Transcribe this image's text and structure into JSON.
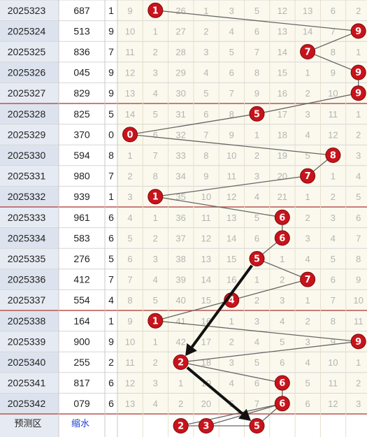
{
  "chart_data": {
    "type": "table",
    "columns": [
      "0",
      "1",
      "2",
      "3",
      "4",
      "5",
      "6",
      "7",
      "8",
      "9"
    ],
    "rows": [
      {
        "issue": "2025323",
        "number": "687",
        "tail": "1",
        "misses": [
          "9",
          "1",
          "26",
          "1",
          "3",
          "5",
          "12",
          "13",
          "6",
          "2"
        ]
      },
      {
        "issue": "2025324",
        "number": "513",
        "tail": "9",
        "misses": [
          "10",
          "1",
          "27",
          "2",
          "4",
          "6",
          "13",
          "14",
          "7",
          "9"
        ]
      },
      {
        "issue": "2025325",
        "number": "836",
        "tail": "7",
        "misses": [
          "11",
          "2",
          "28",
          "3",
          "5",
          "7",
          "14",
          "7",
          "8",
          "1"
        ]
      },
      {
        "issue": "2025326",
        "number": "045",
        "tail": "9",
        "misses": [
          "12",
          "3",
          "29",
          "4",
          "6",
          "8",
          "15",
          "1",
          "9",
          "9"
        ]
      },
      {
        "issue": "2025327",
        "number": "829",
        "tail": "9",
        "misses": [
          "13",
          "4",
          "30",
          "5",
          "7",
          "9",
          "16",
          "2",
          "10",
          "9"
        ]
      },
      {
        "issue": "2025328",
        "number": "825",
        "tail": "5",
        "misses": [
          "14",
          "5",
          "31",
          "6",
          "8",
          "5",
          "17",
          "3",
          "11",
          "1"
        ]
      },
      {
        "issue": "2025329",
        "number": "370",
        "tail": "0",
        "misses": [
          "0",
          "6",
          "32",
          "7",
          "9",
          "1",
          "18",
          "4",
          "12",
          "2"
        ]
      },
      {
        "issue": "2025330",
        "number": "594",
        "tail": "8",
        "misses": [
          "1",
          "7",
          "33",
          "8",
          "10",
          "2",
          "19",
          "5",
          "8",
          "3"
        ]
      },
      {
        "issue": "2025331",
        "number": "980",
        "tail": "7",
        "misses": [
          "2",
          "8",
          "34",
          "9",
          "11",
          "3",
          "20",
          "7",
          "1",
          "4"
        ]
      },
      {
        "issue": "2025332",
        "number": "939",
        "tail": "1",
        "misses": [
          "3",
          "1",
          "35",
          "10",
          "12",
          "4",
          "21",
          "1",
          "2",
          "5"
        ]
      },
      {
        "issue": "2025333",
        "number": "961",
        "tail": "6",
        "misses": [
          "4",
          "1",
          "36",
          "11",
          "13",
          "5",
          "6",
          "2",
          "3",
          "6"
        ]
      },
      {
        "issue": "2025334",
        "number": "583",
        "tail": "6",
        "misses": [
          "5",
          "2",
          "37",
          "12",
          "14",
          "6",
          "6",
          "3",
          "4",
          "7"
        ]
      },
      {
        "issue": "2025335",
        "number": "276",
        "tail": "5",
        "misses": [
          "6",
          "3",
          "38",
          "13",
          "15",
          "5",
          "1",
          "4",
          "5",
          "8"
        ]
      },
      {
        "issue": "2025336",
        "number": "412",
        "tail": "7",
        "misses": [
          "7",
          "4",
          "39",
          "14",
          "16",
          "1",
          "2",
          "7",
          "6",
          "9"
        ]
      },
      {
        "issue": "2025337",
        "number": "554",
        "tail": "4",
        "misses": [
          "8",
          "5",
          "40",
          "15",
          "4",
          "2",
          "3",
          "1",
          "7",
          "10"
        ]
      },
      {
        "issue": "2025338",
        "number": "164",
        "tail": "1",
        "misses": [
          "9",
          "1",
          "41",
          "16",
          "1",
          "3",
          "4",
          "2",
          "8",
          "11"
        ]
      },
      {
        "issue": "2025339",
        "number": "900",
        "tail": "9",
        "misses": [
          "10",
          "1",
          "42",
          "17",
          "2",
          "4",
          "5",
          "3",
          "9",
          "9"
        ]
      },
      {
        "issue": "2025340",
        "number": "255",
        "tail": "2",
        "misses": [
          "11",
          "2",
          "2",
          "18",
          "3",
          "5",
          "6",
          "4",
          "10",
          "1"
        ]
      },
      {
        "issue": "2025341",
        "number": "817",
        "tail": "6",
        "misses": [
          "12",
          "3",
          "1",
          "19",
          "4",
          "6",
          "6",
          "5",
          "11",
          "2"
        ]
      },
      {
        "issue": "2025342",
        "number": "079",
        "tail": "6",
        "misses": [
          "13",
          "4",
          "2",
          "20",
          "5",
          "7",
          "6",
          "6",
          "12",
          "3"
        ]
      }
    ],
    "predicted": [
      "2",
      "3",
      "5"
    ]
  },
  "footer": {
    "predict_label": "预测区",
    "shrink_label": "缩水"
  },
  "colors": {
    "ball": "#c8131b",
    "ball_stroke": "#7a0a0e",
    "issue_bg_a": "#e6ebf3",
    "issue_bg_b": "#dde3ee",
    "grid_bg": "#fbf9ed",
    "grid_line": "#e5dfcc",
    "sep_line": "#b85450",
    "trend_line": "#666666",
    "arrow": "#111111",
    "shrink_link": "#1a3fd0"
  }
}
